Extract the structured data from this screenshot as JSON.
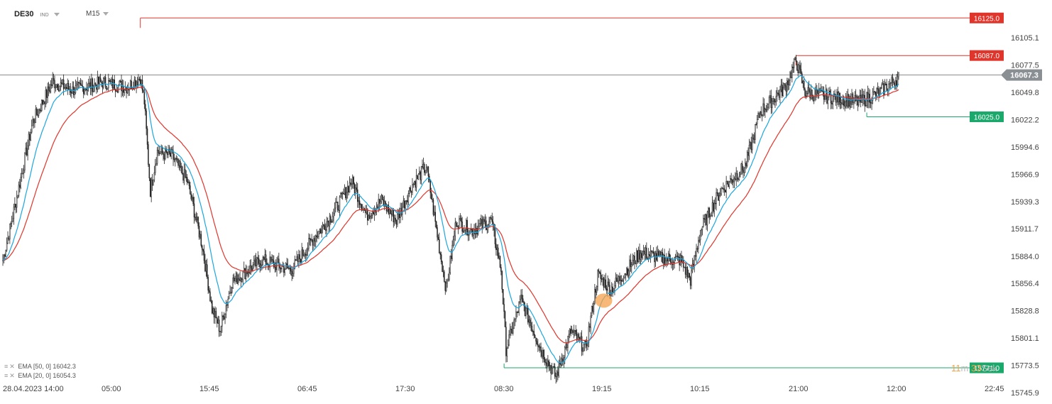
{
  "header": {
    "symbol": "DE30",
    "sub": "IND",
    "timeframe": "M15"
  },
  "indicators": [
    {
      "label": "EMA [50, 0] 16042.3",
      "color": "#e0352b"
    },
    {
      "label": "EMA [20, 0] 16054.3",
      "color": "#1ca6de"
    }
  ],
  "timer": {
    "minutes": "11",
    "m": "m",
    "seconds": "33",
    "sek": "Sek"
  },
  "colors": {
    "bull": "#ffffff",
    "bear": "#222222",
    "wick": "#222222",
    "ema20": "#1ca6de",
    "ema50": "#e0352b",
    "resistance": "#e0352b",
    "support": "#1aa86b",
    "current": "#888888",
    "marker": "#f5a04a"
  },
  "chart_data": {
    "type": "candlestick",
    "symbol": "DE30",
    "timeframe": "M15",
    "ylim": [
      15735,
      16140
    ],
    "y_ticks": [
      16105.1,
      16077.5,
      16049.8,
      16022.2,
      15994.6,
      15966.9,
      15939.3,
      15911.7,
      15884.0,
      15856.4,
      15828.8,
      15801.1,
      15773.5,
      15745.9
    ],
    "x_ticks": [
      "28.04.2023  14:00",
      "05:00",
      "15:45",
      "06:45",
      "17:30",
      "08:30",
      "19:15",
      "10:15",
      "21:00",
      "12:00",
      "22:45"
    ],
    "current_price": 16067.3,
    "levels": [
      {
        "label": "16125.0",
        "value": 16125.0,
        "kind": "resistance",
        "from_bar": 138
      },
      {
        "label": "16087.0",
        "value": 16087.0,
        "kind": "resistance",
        "from_bar": 796
      },
      {
        "label": "16025.0",
        "value": 16025.0,
        "kind": "support",
        "from_bar": 867
      },
      {
        "label": "15771.0",
        "value": 15771.0,
        "kind": "support",
        "from_bar": 503
      }
    ],
    "marker": {
      "bar": 603,
      "value": 15839
    },
    "bars": 900,
    "waypoints": [
      [
        0,
        15880
      ],
      [
        10,
        15925
      ],
      [
        30,
        16020
      ],
      [
        50,
        16060
      ],
      [
        70,
        16052
      ],
      [
        100,
        16060
      ],
      [
        125,
        16055
      ],
      [
        138,
        16065
      ],
      [
        142,
        16040
      ],
      [
        148,
        15950
      ],
      [
        155,
        15990
      ],
      [
        170,
        15985
      ],
      [
        185,
        15960
      ],
      [
        200,
        15895
      ],
      [
        210,
        15830
      ],
      [
        218,
        15810
      ],
      [
        230,
        15858
      ],
      [
        260,
        15880
      ],
      [
        290,
        15870
      ],
      [
        310,
        15900
      ],
      [
        330,
        15925
      ],
      [
        350,
        15960
      ],
      [
        365,
        15925
      ],
      [
        380,
        15940
      ],
      [
        395,
        15920
      ],
      [
        410,
        15955
      ],
      [
        425,
        15975
      ],
      [
        440,
        15880
      ],
      [
        445,
        15850
      ],
      [
        455,
        15920
      ],
      [
        470,
        15910
      ],
      [
        490,
        15920
      ],
      [
        500,
        15870
      ],
      [
        505,
        15790
      ],
      [
        520,
        15840
      ],
      [
        540,
        15790
      ],
      [
        555,
        15762
      ],
      [
        570,
        15808
      ],
      [
        585,
        15790
      ],
      [
        597,
        15865
      ],
      [
        610,
        15850
      ],
      [
        618,
        15860
      ],
      [
        640,
        15888
      ],
      [
        660,
        15882
      ],
      [
        680,
        15880
      ],
      [
        690,
        15860
      ],
      [
        700,
        15910
      ],
      [
        720,
        15950
      ],
      [
        745,
        15975
      ],
      [
        760,
        16030
      ],
      [
        785,
        16055
      ],
      [
        796,
        16082
      ],
      [
        805,
        16050
      ],
      [
        830,
        16045
      ],
      [
        860,
        16040
      ],
      [
        880,
        16050
      ],
      [
        900,
        16066
      ]
    ],
    "ema50_end": 16042.3,
    "ema20_end": 16054.3
  }
}
